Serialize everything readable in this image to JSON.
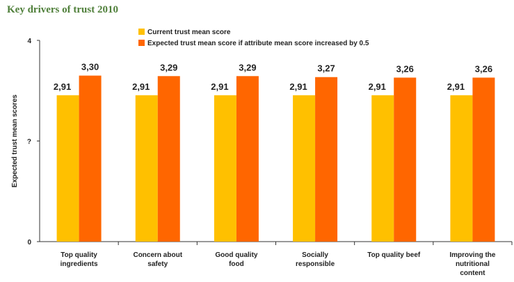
{
  "page": {
    "title": "Key drivers of trust 2010"
  },
  "chart_data": {
    "type": "bar",
    "title": "Key drivers of trust 2010",
    "xlabel": "",
    "ylabel": "Expected trust mean scores",
    "ylim": [
      0,
      4
    ],
    "yticks": [
      "4",
      "?",
      "0"
    ],
    "categories": [
      [
        "Top quality",
        "ingredients"
      ],
      [
        "Concern about",
        "safety"
      ],
      [
        "Good quality",
        "food"
      ],
      [
        "Socially",
        "responsible"
      ],
      [
        "Top quality beef"
      ],
      [
        "Improving the",
        "nutritional",
        "content"
      ]
    ],
    "series": [
      {
        "name": "Current trust mean score",
        "color": "#ffc000",
        "values": [
          2.91,
          2.91,
          2.91,
          2.91,
          2.91,
          2.91
        ],
        "labels": [
          "2,91",
          "2,91",
          "2,91",
          "2,91",
          "2,91",
          "2,91"
        ]
      },
      {
        "name": "Expected trust mean score if attribute mean score increased by 0.5",
        "color": "#ff6600",
        "values": [
          3.3,
          3.29,
          3.29,
          3.27,
          3.26,
          3.26
        ],
        "labels": [
          "3,30",
          "3,29",
          "3,29",
          "3,27",
          "3,26",
          "3,26"
        ]
      }
    ],
    "legend_position": "top",
    "grid": false
  }
}
